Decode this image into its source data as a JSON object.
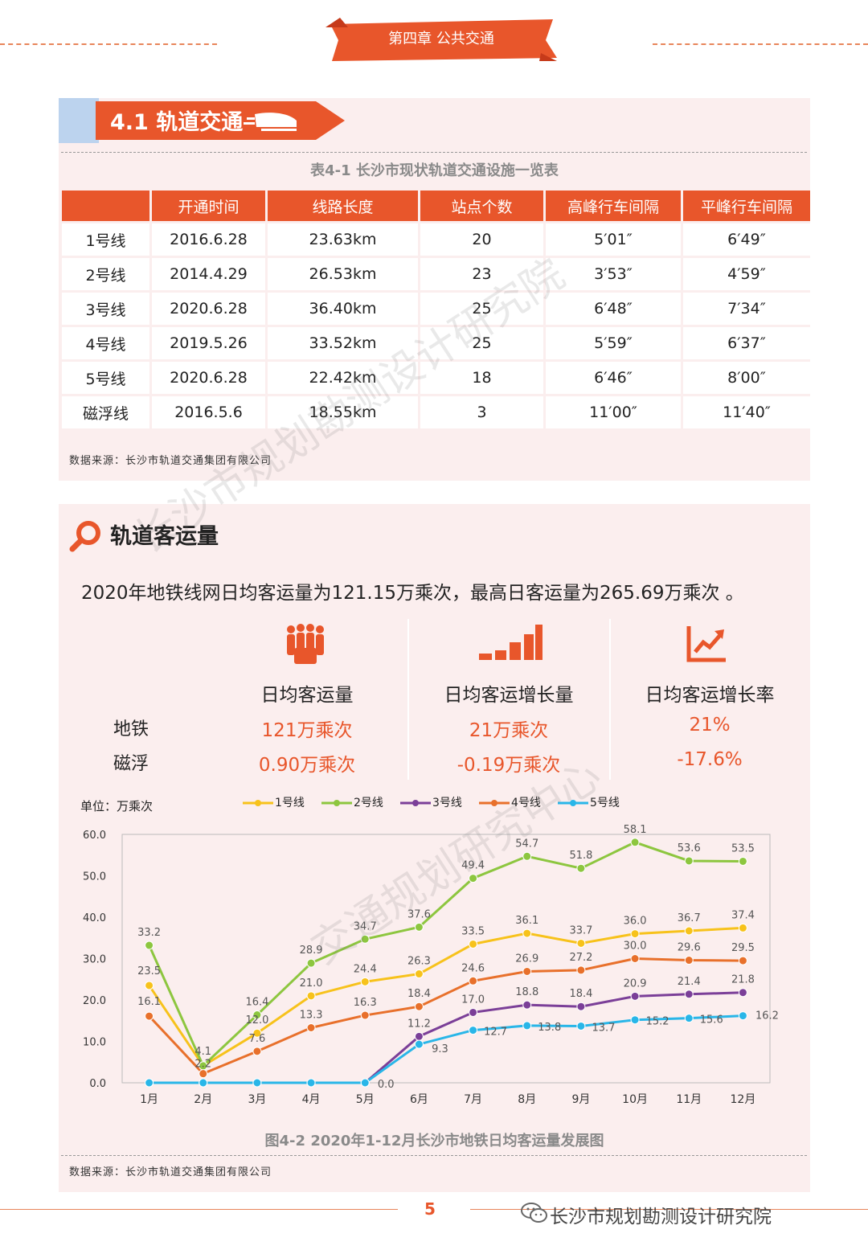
{
  "header": {
    "chapter": "第四章 公共交通"
  },
  "section": {
    "title": "4.1 轨道交通"
  },
  "table": {
    "title": "表4-1 长沙市现状轨道交通设施一览表",
    "headers": [
      "",
      "开通时间",
      "线路长度",
      "站点个数",
      "高峰行车间隔",
      "平峰行车间隔"
    ],
    "rows": [
      [
        "1号线",
        "2016.6.28",
        "23.63km",
        "20",
        "5′01″",
        "6′49″"
      ],
      [
        "2号线",
        "2014.4.29",
        "26.53km",
        "23",
        "3′53″",
        "4′59″"
      ],
      [
        "3号线",
        "2020.6.28",
        "36.40km",
        "25",
        "6′48″",
        "7′34″"
      ],
      [
        "4号线",
        "2019.5.26",
        "33.52km",
        "25",
        "5′59″",
        "6′37″"
      ],
      [
        "5号线",
        "2020.6.28",
        "22.42km",
        "18",
        "6′46″",
        "8′00″"
      ],
      [
        "磁浮线",
        "2016.5.6",
        "18.55km",
        "3",
        "11′00″",
        "11′40″"
      ]
    ],
    "source": "数据来源：长沙市轨道交通集团有限公司"
  },
  "ridership": {
    "title": "轨道客运量",
    "summary": "2020年地铁线网日均客运量为121.15万乘次，最高日客运量为265.69万乘次 。",
    "stats": {
      "headers": [
        "日均客运量",
        "日均客运增长量",
        "日均客运增长率"
      ],
      "icons": [
        "people-icon",
        "growth-bars-icon",
        "growth-chart-icon"
      ],
      "rows": [
        {
          "label": "地铁",
          "values": [
            "121万乘次",
            "21万乘次",
            "21%"
          ]
        },
        {
          "label": "磁浮",
          "values": [
            "0.90万乘次",
            "-0.19万乘次",
            "-17.6%"
          ]
        }
      ]
    },
    "figure_caption": "图4-2 2020年1-12月长沙市地铁日均客运量发展图",
    "source": "数据来源：长沙市轨道交通集团有限公司"
  },
  "chart_data": {
    "type": "line",
    "unit_label": "单位：万乘次",
    "categories": [
      "1月",
      "2月",
      "3月",
      "4月",
      "5月",
      "6月",
      "7月",
      "8月",
      "9月",
      "10月",
      "11月",
      "12月"
    ],
    "ylim": [
      0,
      60
    ],
    "yticks": [
      "0.0",
      "10.0",
      "20.0",
      "30.0",
      "40.0",
      "50.0",
      "60.0"
    ],
    "grid": false,
    "legend_position": "top",
    "series": [
      {
        "name": "1号线",
        "color": "#f7c21b",
        "values": [
          23.5,
          4.1,
          12.0,
          21.0,
          24.4,
          26.3,
          33.5,
          36.1,
          33.7,
          36.0,
          36.7,
          37.4
        ],
        "labels": [
          "23.5",
          "4.1",
          "12.0",
          "21.0",
          "24.4",
          "26.3",
          "33.5",
          "36.1",
          "33.7",
          "36.0",
          "36.7",
          "37.4"
        ]
      },
      {
        "name": "2号线",
        "color": "#8dc63f",
        "values": [
          33.2,
          4.1,
          16.4,
          28.9,
          34.7,
          37.6,
          49.4,
          54.7,
          51.8,
          58.1,
          53.6,
          53.5
        ],
        "labels": [
          "33.2",
          "",
          "16.4",
          "28.9",
          "34.7",
          "37.6",
          "49.4",
          "54.7",
          "51.8",
          "58.1",
          "53.6",
          "53.5"
        ]
      },
      {
        "name": "3号线",
        "color": "#7b3f98",
        "values": [
          0,
          0,
          0,
          0,
          0,
          11.2,
          17.0,
          18.8,
          18.4,
          20.9,
          21.4,
          21.8
        ],
        "labels": [
          "",
          "",
          "",
          "",
          "",
          "11.2",
          "17.0",
          "18.8",
          "18.4",
          "20.9",
          "21.4",
          "21.8"
        ]
      },
      {
        "name": "4号线",
        "color": "#e8702b",
        "values": [
          16.1,
          2.2,
          7.6,
          13.3,
          16.3,
          18.4,
          24.6,
          26.9,
          27.2,
          30.0,
          29.6,
          29.5
        ],
        "labels": [
          "16.1",
          "2.2",
          "7.6",
          "13.3",
          "16.3",
          "18.4",
          "24.6",
          "26.9",
          "27.2",
          "30.0",
          "29.6",
          "29.5"
        ]
      },
      {
        "name": "5号线",
        "color": "#29b6e8",
        "values": [
          0,
          0,
          0,
          0,
          0,
          9.3,
          12.7,
          13.8,
          13.7,
          15.2,
          15.6,
          16.2
        ],
        "labels": [
          "",
          "",
          "",
          "",
          "0.0",
          "9.3",
          "12.7",
          "13.8",
          "13.7",
          "15.2",
          "15.6",
          "16.2"
        ]
      }
    ]
  },
  "footer": {
    "page": "5",
    "brand": "长沙市规划勘测设计研究院"
  },
  "watermark": {
    "line1": "长沙市规划勘测设计研究院",
    "line2": "交通规划研究中心"
  }
}
